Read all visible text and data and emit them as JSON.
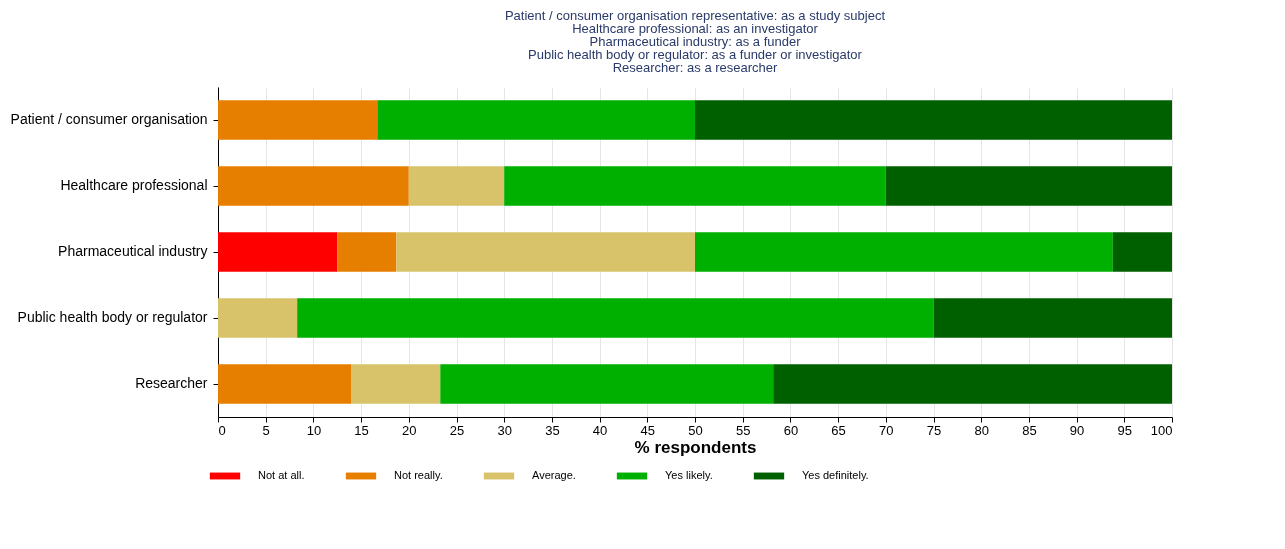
{
  "chart_data": {
    "type": "bar",
    "orientation": "horizontal",
    "stacked": true,
    "title": "Patient / consumer organisation representative: as a study subject\nHealthcare professional: as an investigator\nPharmaceutical industry: as a funder\nPublic health body or regulator: as a funder or investigator\nResearcher: as a researcher",
    "categories": [
      "Patient / consumer organisation",
      "Healthcare professional",
      "Pharmaceutical industry",
      "Public health body or regulator",
      "Researcher"
    ],
    "series": [
      {
        "name": "Not at all.",
        "color": "#ff0000",
        "values": [
          null,
          null,
          12.5,
          null,
          null
        ]
      },
      {
        "name": "Not really.",
        "color": "#e67e00",
        "values": [
          16.7,
          20,
          6.2,
          null,
          14
        ]
      },
      {
        "name": "Average.",
        "color": "#d9c36a",
        "values": [
          null,
          10,
          31.3,
          8.3,
          9.3
        ]
      },
      {
        "name": "Yes likely.",
        "color": "#00b000",
        "values": [
          33.3,
          40,
          43.8,
          66.7,
          34.9
        ]
      },
      {
        "name": "Yes definitely.",
        "color": "#006000",
        "values": [
          50,
          30,
          6.2,
          25,
          41.8
        ]
      }
    ],
    "xlabel": "% respondents",
    "xlim": [
      0,
      100
    ],
    "xticks": [
      0,
      5,
      10,
      15,
      20,
      25,
      30,
      35,
      40,
      45,
      50,
      55,
      60,
      65,
      70,
      75,
      80,
      85,
      90,
      95,
      100
    ],
    "grid": "x",
    "legend": "bottom"
  }
}
